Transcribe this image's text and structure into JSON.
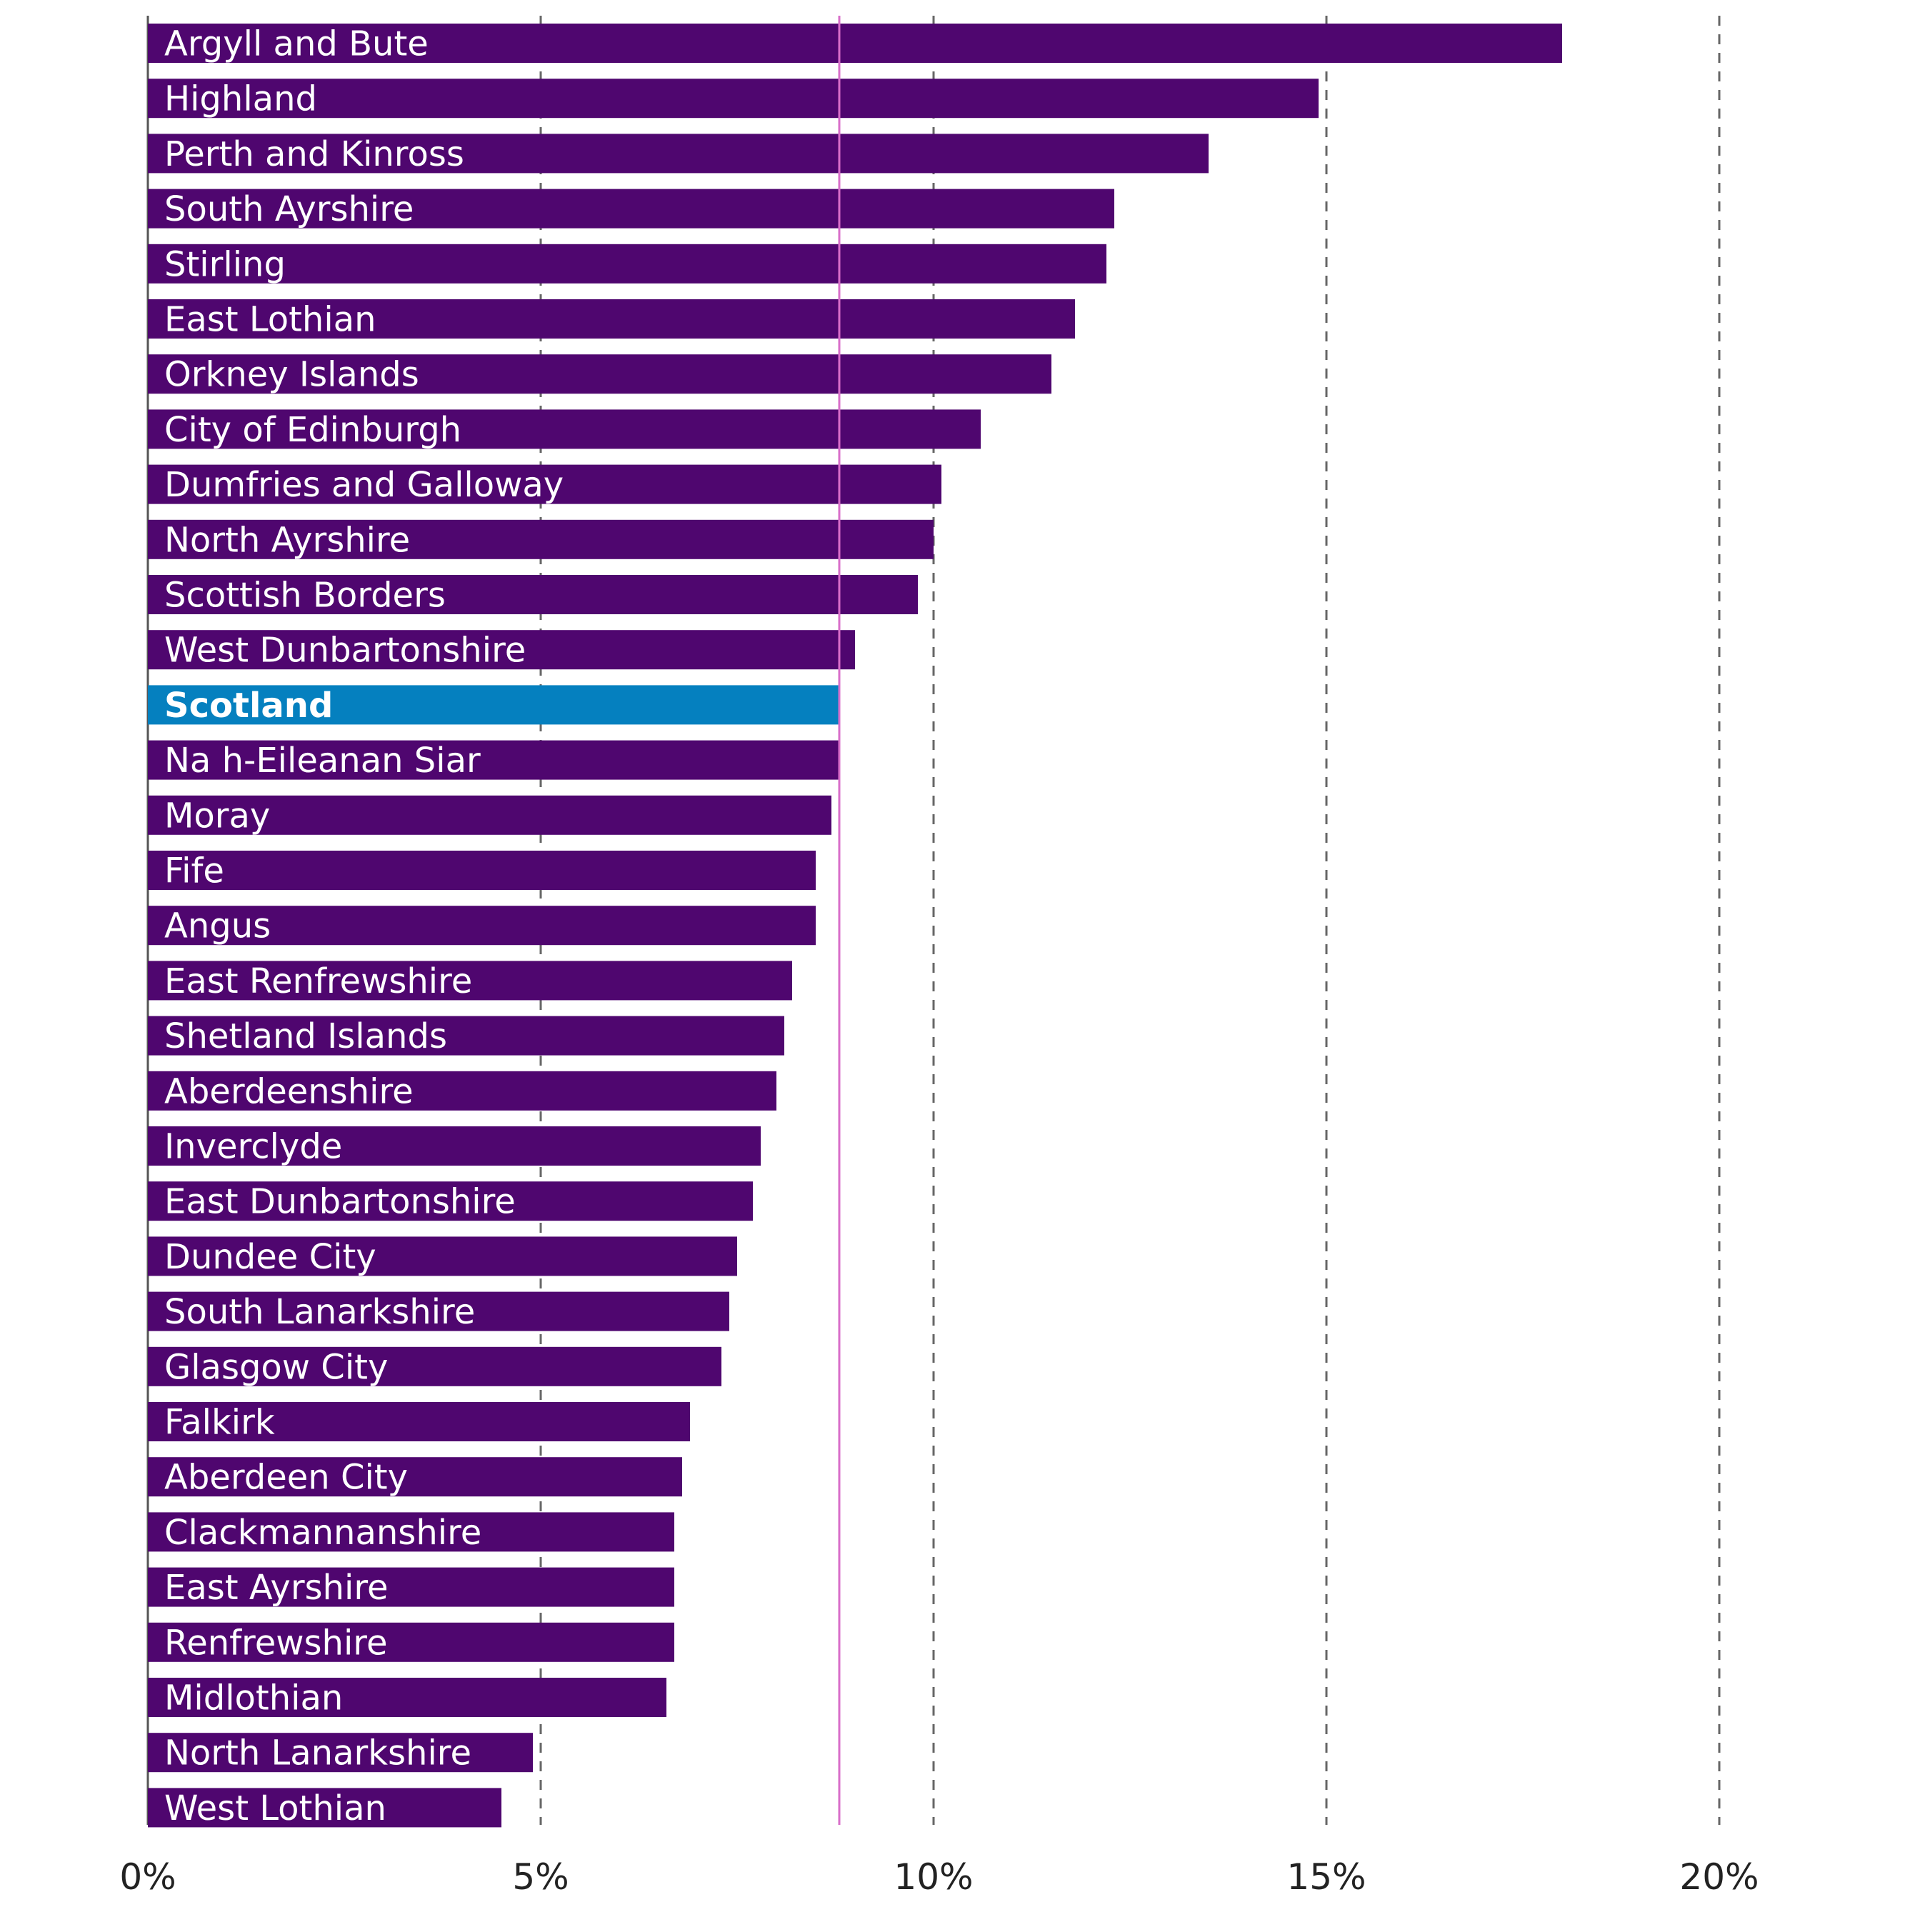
{
  "chart_data": {
    "type": "bar",
    "orientation": "horizontal",
    "title": "",
    "xlabel": "",
    "ylabel": "",
    "xlim": [
      0,
      20
    ],
    "grid": true,
    "legend": "none",
    "x_ticks": [
      {
        "value": 0,
        "label": "0%"
      },
      {
        "value": 5,
        "label": "5%"
      },
      {
        "value": 10,
        "label": "10%"
      },
      {
        "value": 15,
        "label": "15%"
      },
      {
        "value": 20,
        "label": "20%"
      }
    ],
    "reference_line": {
      "value": 8.8,
      "color": "#d96ec9"
    },
    "highlight_category": "Scotland",
    "colors": {
      "bar": "#4f066f",
      "highlight": "#0580bf",
      "grid": "#666666"
    },
    "categories": [
      "Argyll and Bute",
      "Highland",
      "Perth and Kinross",
      "South Ayrshire",
      "Stirling",
      "East Lothian",
      "Orkney Islands",
      "City of Edinburgh",
      "Dumfries and Galloway",
      "North Ayrshire",
      "Scottish Borders",
      "West Dunbartonshire",
      "Scotland",
      "Na h-Eileanan Siar",
      "Moray",
      "Fife",
      "Angus",
      "East Renfrewshire",
      "Shetland Islands",
      "Aberdeenshire",
      "Inverclyde",
      "East Dunbartonshire",
      "Dundee City",
      "South Lanarkshire",
      "Glasgow City",
      "Falkirk",
      "Aberdeen City",
      "Clackmannanshire",
      "East Ayrshire",
      "Renfrewshire",
      "Midlothian",
      "North Lanarkshire",
      "West Lothian"
    ],
    "values": [
      18.0,
      14.9,
      13.5,
      12.3,
      12.2,
      11.8,
      11.5,
      10.6,
      10.1,
      10.0,
      9.8,
      9.0,
      8.8,
      8.8,
      8.7,
      8.5,
      8.5,
      8.2,
      8.1,
      8.0,
      7.8,
      7.7,
      7.5,
      7.4,
      7.3,
      6.9,
      6.8,
      6.7,
      6.7,
      6.7,
      6.6,
      4.9,
      4.5
    ]
  }
}
